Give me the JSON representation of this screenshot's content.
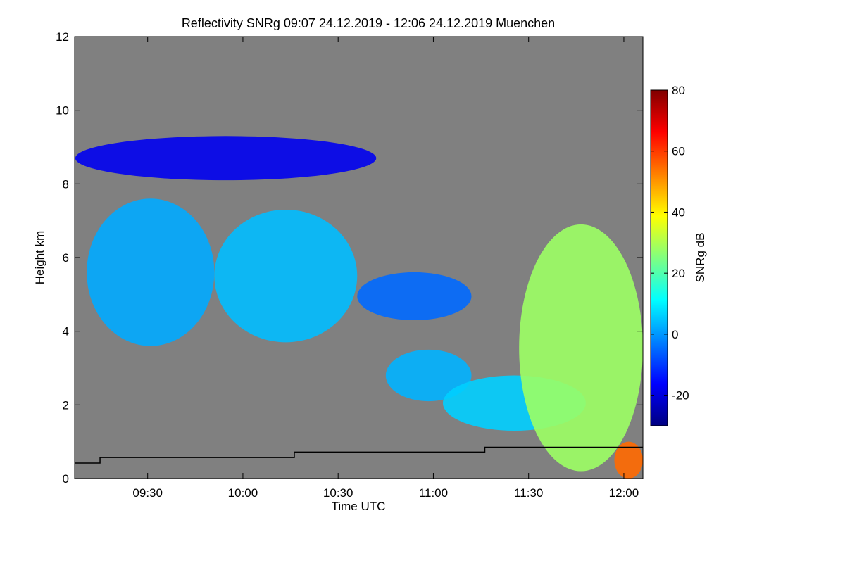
{
  "chart_data": {
    "type": "heatmap",
    "title": "Reflectivity SNRg   09:07 24.12.2019 - 12:06 24.12.2019 Muenchen",
    "xlabel": "Time UTC",
    "ylabel": "Height km",
    "colorbar_label": "SNRg dB",
    "xlim": [
      "09:07",
      "12:06"
    ],
    "ylim": [
      0,
      12
    ],
    "x_ticks": [
      "09:30",
      "10:00",
      "10:30",
      "11:00",
      "11:30",
      "12:00"
    ],
    "y_ticks": [
      "0",
      "2",
      "4",
      "6",
      "8",
      "10",
      "12"
    ],
    "colorbar_range": [
      -30,
      80
    ],
    "colorbar_ticks": [
      "-20",
      "0",
      "20",
      "40",
      "60",
      "80"
    ],
    "colors": {
      "no_signal": "#808080",
      "colormap": [
        "#000080",
        "#0000ff",
        "#0080ff",
        "#00ffff",
        "#80ff80",
        "#ffff00",
        "#ff8000",
        "#ff0000",
        "#800000"
      ]
    },
    "regions": [
      {
        "name": "upper-cirrus-band",
        "t": [
          9.12,
          10.7
        ],
        "h": [
          8.1,
          9.3
        ],
        "snr": -18
      },
      {
        "name": "main-cloud-band-west",
        "t": [
          9.18,
          9.85
        ],
        "h": [
          3.6,
          7.6
        ],
        "snr": 2
      },
      {
        "name": "main-cloud-band-mid",
        "t": [
          9.85,
          10.6
        ],
        "h": [
          3.7,
          7.3
        ],
        "snr": 4
      },
      {
        "name": "main-cloud-band-east",
        "t": [
          10.6,
          11.2
        ],
        "h": [
          4.3,
          5.6
        ],
        "snr": -5
      },
      {
        "name": "lower-cloud-1",
        "t": [
          10.75,
          11.2
        ],
        "h": [
          2.1,
          3.5
        ],
        "snr": 3
      },
      {
        "name": "lower-cloud-2",
        "t": [
          11.05,
          11.8
        ],
        "h": [
          1.3,
          2.8
        ],
        "snr": 6
      },
      {
        "name": "east-convective-band",
        "t": [
          11.45,
          12.1
        ],
        "h": [
          0.2,
          6.9
        ],
        "snr": 28
      },
      {
        "name": "near-ground-precip",
        "t": [
          11.95,
          12.1
        ],
        "h": [
          0.0,
          1.0
        ],
        "snr": 55
      }
    ],
    "boundary_layer_line": {
      "name": "black-step-line",
      "points": [
        [
          9.12,
          0.42
        ],
        [
          9.25,
          0.42
        ],
        [
          9.25,
          0.57
        ],
        [
          10.27,
          0.57
        ],
        [
          10.27,
          0.72
        ],
        [
          11.27,
          0.72
        ],
        [
          11.27,
          0.85
        ],
        [
          12.1,
          0.85
        ]
      ]
    }
  }
}
